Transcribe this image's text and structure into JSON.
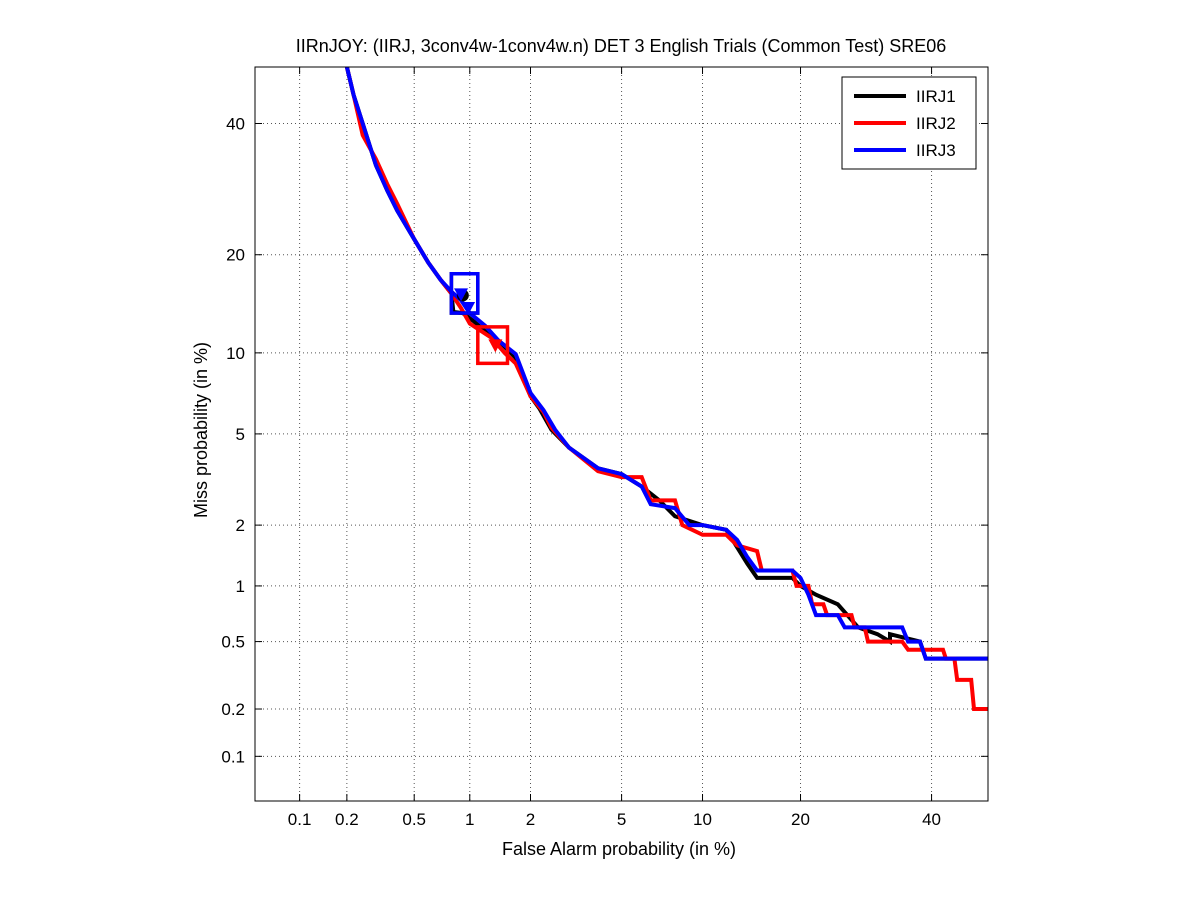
{
  "chart_data": {
    "type": "line",
    "title": "IIRnJOY: (IIRJ, 3conv4w-1conv4w.n) DET 3 English Trials (Common Test) SRE06",
    "xlabel": "False Alarm probability (in %)",
    "ylabel": "Miss probability (in %)",
    "xscale": "normal-deviate",
    "yscale": "normal-deviate",
    "xlim": [
      0.05,
      50
    ],
    "ylim": [
      0.05,
      50
    ],
    "xticks": [
      0.1,
      0.2,
      0.5,
      1,
      2,
      5,
      10,
      20,
      40
    ],
    "xtick_labels": [
      "0.1",
      "0.2",
      "0.5",
      "1",
      "2",
      "5",
      "10",
      "20",
      "40"
    ],
    "yticks": [
      0.1,
      0.2,
      0.5,
      1,
      2,
      5,
      10,
      20,
      40
    ],
    "ytick_labels": [
      "0.1",
      "0.2",
      "0.5",
      "1",
      "2",
      "5",
      "10",
      "20",
      "40"
    ],
    "grid": true,
    "legend_position": "top-right",
    "series": [
      {
        "name": "IIRJ1",
        "color": "#000000",
        "points": [
          [
            0.2,
            50
          ],
          [
            0.22,
            45
          ],
          [
            0.25,
            40
          ],
          [
            0.3,
            33
          ],
          [
            0.35,
            29
          ],
          [
            0.4,
            26
          ],
          [
            0.5,
            22
          ],
          [
            0.6,
            19
          ],
          [
            0.7,
            17
          ],
          [
            0.8,
            15.5
          ],
          [
            0.82,
            13.6
          ],
          [
            0.92,
            13.5
          ],
          [
            1.05,
            12.7
          ],
          [
            1.2,
            11.8
          ],
          [
            1.4,
            11
          ],
          [
            1.7,
            9.6
          ],
          [
            2,
            7
          ],
          [
            2.2,
            6.3
          ],
          [
            2.5,
            5.2
          ],
          [
            3,
            4.4
          ],
          [
            4,
            3.6
          ],
          [
            5,
            3.4
          ],
          [
            6,
            3
          ],
          [
            7,
            2.6
          ],
          [
            8,
            2.2
          ],
          [
            10,
            2
          ],
          [
            12,
            1.9
          ],
          [
            14,
            1.3
          ],
          [
            15,
            1.1
          ],
          [
            19,
            1.1
          ],
          [
            20,
            1
          ],
          [
            22,
            0.9
          ],
          [
            25,
            0.8
          ],
          [
            28,
            0.6
          ],
          [
            31,
            0.55
          ],
          [
            33,
            0.5
          ],
          [
            33,
            0.55
          ],
          [
            38,
            0.5
          ],
          [
            39,
            0.4
          ],
          [
            50,
            0.4
          ]
        ]
      },
      {
        "name": "IIRJ2",
        "color": "#ff0000",
        "points": [
          [
            0.2,
            50
          ],
          [
            0.22,
            45
          ],
          [
            0.25,
            38
          ],
          [
            0.3,
            34
          ],
          [
            0.35,
            30
          ],
          [
            0.4,
            27
          ],
          [
            0.5,
            22
          ],
          [
            0.6,
            19
          ],
          [
            0.7,
            17
          ],
          [
            0.8,
            15.5
          ],
          [
            0.9,
            14
          ],
          [
            1,
            12.5
          ],
          [
            1.3,
            11.2
          ],
          [
            1.5,
            10
          ],
          [
            1.7,
            9.2
          ],
          [
            2,
            7
          ],
          [
            2.3,
            6.1
          ],
          [
            2.5,
            5.3
          ],
          [
            3,
            4.4
          ],
          [
            4,
            3.5
          ],
          [
            5,
            3.3
          ],
          [
            6,
            3.3
          ],
          [
            6.5,
            2.6
          ],
          [
            8,
            2.6
          ],
          [
            8.5,
            2
          ],
          [
            10,
            1.8
          ],
          [
            12,
            1.8
          ],
          [
            13,
            1.6
          ],
          [
            15,
            1.5
          ],
          [
            15.5,
            1.2
          ],
          [
            19,
            1.2
          ],
          [
            19.5,
            1
          ],
          [
            21,
            1
          ],
          [
            21.5,
            0.8
          ],
          [
            23,
            0.8
          ],
          [
            23.5,
            0.7
          ],
          [
            27,
            0.7
          ],
          [
            27.5,
            0.6
          ],
          [
            29,
            0.6
          ],
          [
            29.5,
            0.5
          ],
          [
            35,
            0.5
          ],
          [
            36,
            0.45
          ],
          [
            42,
            0.45
          ],
          [
            42.5,
            0.4
          ],
          [
            44,
            0.4
          ],
          [
            44.5,
            0.3
          ],
          [
            47,
            0.3
          ],
          [
            47.5,
            0.2
          ],
          [
            50,
            0.2
          ]
        ]
      },
      {
        "name": "IIRJ3",
        "color": "#0000ff",
        "points": [
          [
            0.2,
            50
          ],
          [
            0.22,
            45
          ],
          [
            0.25,
            40
          ],
          [
            0.3,
            33
          ],
          [
            0.35,
            29
          ],
          [
            0.4,
            26
          ],
          [
            0.5,
            22
          ],
          [
            0.6,
            19
          ],
          [
            0.7,
            17
          ],
          [
            0.8,
            15.7
          ],
          [
            0.9,
            14.8
          ],
          [
            1,
            13.5
          ],
          [
            1.2,
            12.3
          ],
          [
            1.4,
            11
          ],
          [
            1.7,
            9.9
          ],
          [
            2,
            7.2
          ],
          [
            2.3,
            6.2
          ],
          [
            2.6,
            5.2
          ],
          [
            3,
            4.4
          ],
          [
            4,
            3.6
          ],
          [
            5,
            3.4
          ],
          [
            6,
            3
          ],
          [
            6.5,
            2.5
          ],
          [
            8,
            2.4
          ],
          [
            9,
            2
          ],
          [
            10,
            2
          ],
          [
            12,
            1.9
          ],
          [
            13,
            1.7
          ],
          [
            14,
            1.4
          ],
          [
            15,
            1.2
          ],
          [
            19,
            1.2
          ],
          [
            20,
            1.1
          ],
          [
            21,
            0.9
          ],
          [
            22,
            0.7
          ],
          [
            25,
            0.7
          ],
          [
            26,
            0.6
          ],
          [
            35,
            0.6
          ],
          [
            36,
            0.5
          ],
          [
            38,
            0.5
          ],
          [
            39,
            0.4
          ],
          [
            50,
            0.4
          ]
        ]
      }
    ],
    "markers": [
      {
        "series": "IIRJ1",
        "x": 0.92,
        "y": 15.3,
        "shape": "circle",
        "color": "#000000"
      },
      {
        "series": "IIRJ2",
        "x": 1.35,
        "y": 10.6,
        "shape": "triangle-down",
        "color": "#ff0000"
      },
      {
        "series": "IIRJ3",
        "x": 0.9,
        "y": 15.4,
        "shape": "triangle-down",
        "color": "#0000ff"
      },
      {
        "series": "IIRJ3",
        "x": 0.98,
        "y": 14,
        "shape": "triangle-down",
        "color": "#0000ff"
      }
    ],
    "boxes": [
      {
        "series": "IIRJ1",
        "x": [
          0.8,
          1.1
        ],
        "y": [
          13.5,
          17.7
        ],
        "color": "#000000"
      },
      {
        "series": "IIRJ3",
        "x": [
          0.8,
          1.1
        ],
        "y": [
          13.5,
          17.7
        ],
        "color": "#0000ff"
      },
      {
        "series": "IIRJ2",
        "x": [
          1.1,
          1.55
        ],
        "y": [
          9.2,
          12.2
        ],
        "color": "#ff0000"
      }
    ]
  }
}
